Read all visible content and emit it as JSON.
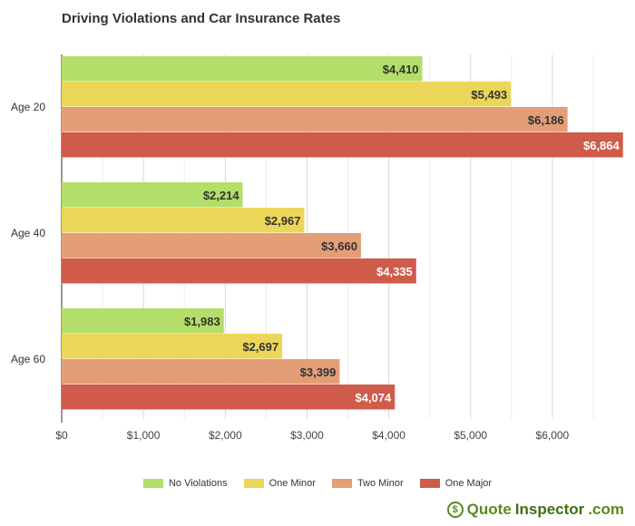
{
  "chart_data": {
    "type": "bar",
    "orientation": "horizontal",
    "title": "Driving Violations and Car Insurance Rates",
    "categories": [
      "Age 20",
      "Age 40",
      "Age 60"
    ],
    "series": [
      {
        "name": "No Violations",
        "color": "#b3de69",
        "values": [
          4410,
          2214,
          1983
        ],
        "labels": [
          "$4,410",
          "$2,214",
          "$1,983"
        ]
      },
      {
        "name": "One Minor",
        "color": "#ecd65a",
        "values": [
          5493,
          2967,
          2697
        ],
        "labels": [
          "$5,493",
          "$2,967",
          "$2,697"
        ]
      },
      {
        "name": "Two Minor",
        "color": "#e39e78",
        "values": [
          6186,
          3660,
          3399
        ],
        "labels": [
          "$6,186",
          "$3,660",
          "$3,399"
        ]
      },
      {
        "name": "One Major",
        "color": "#cf5b4a",
        "values": [
          6864,
          4335,
          4074
        ],
        "labels": [
          "$6,864",
          "$4,335",
          "$4,074"
        ]
      }
    ],
    "xlim": [
      0,
      6900
    ],
    "xticks": [
      0,
      1000,
      2000,
      3000,
      4000,
      5000,
      6000
    ],
    "xtick_labels": [
      "$0",
      "$1,000",
      "$2,000",
      "$3,000",
      "$4,000",
      "$5,000",
      "$6,000"
    ],
    "grid": true,
    "legend_position": "bottom"
  },
  "brand": {
    "icon_glyph": "$",
    "part1": "Quote",
    "part2": "Inspector",
    "part3": ".com"
  }
}
